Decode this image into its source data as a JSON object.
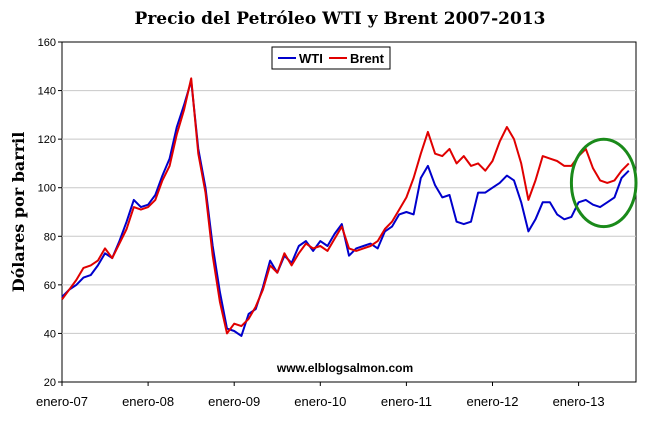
{
  "chart_data": {
    "type": "line",
    "title": "Precio del Petróleo WTI y Brent 2007-2013",
    "xlabel": "",
    "ylabel": "Dólares por barril",
    "ylim": [
      20,
      160
    ],
    "yticks": [
      20,
      40,
      60,
      80,
      100,
      120,
      140,
      160
    ],
    "xlim": [
      "2007-01",
      "2013-09"
    ],
    "xticks": [
      "enero-07",
      "enero-08",
      "enero-09",
      "enero-10",
      "enero-11",
      "enero-12",
      "enero-13"
    ],
    "grid": true,
    "legend": "top-center",
    "annotation": "www.elblogsalmon.com",
    "highlight": {
      "shape": "ellipse",
      "color": "#1a8a1a",
      "x_range": [
        "2012-12",
        "2013-09"
      ],
      "y_range": [
        84,
        120
      ]
    },
    "series": [
      {
        "name": "WTI",
        "color": "#0000cc",
        "x": [
          "2007-01",
          "2007-02",
          "2007-03",
          "2007-04",
          "2007-05",
          "2007-06",
          "2007-07",
          "2007-08",
          "2007-09",
          "2007-10",
          "2007-11",
          "2007-12",
          "2008-01",
          "2008-02",
          "2008-03",
          "2008-04",
          "2008-05",
          "2008-06",
          "2008-07",
          "2008-08",
          "2008-09",
          "2008-10",
          "2008-11",
          "2008-12",
          "2009-01",
          "2009-02",
          "2009-03",
          "2009-04",
          "2009-05",
          "2009-06",
          "2009-07",
          "2009-08",
          "2009-09",
          "2009-10",
          "2009-11",
          "2009-12",
          "2010-01",
          "2010-02",
          "2010-03",
          "2010-04",
          "2010-05",
          "2010-06",
          "2010-07",
          "2010-08",
          "2010-09",
          "2010-10",
          "2010-11",
          "2010-12",
          "2011-01",
          "2011-02",
          "2011-03",
          "2011-04",
          "2011-05",
          "2011-06",
          "2011-07",
          "2011-08",
          "2011-09",
          "2011-10",
          "2011-11",
          "2011-12",
          "2012-01",
          "2012-02",
          "2012-03",
          "2012-04",
          "2012-05",
          "2012-06",
          "2012-07",
          "2012-08",
          "2012-09",
          "2012-10",
          "2012-11",
          "2012-12",
          "2013-01",
          "2013-02",
          "2013-03",
          "2013-04",
          "2013-05",
          "2013-06",
          "2013-07",
          "2013-08"
        ],
        "values": [
          55,
          58,
          60,
          63,
          64,
          68,
          73,
          71,
          78,
          86,
          95,
          92,
          93,
          97,
          105,
          112,
          125,
          134,
          144,
          116,
          100,
          76,
          57,
          42,
          41,
          39,
          48,
          50,
          59,
          70,
          65,
          72,
          69,
          76,
          78,
          74,
          78,
          76,
          81,
          85,
          72,
          75,
          76,
          77,
          75,
          82,
          84,
          89,
          90,
          89,
          104,
          109,
          101,
          96,
          97,
          86,
          85,
          86,
          98,
          98,
          100,
          102,
          105,
          103,
          94,
          82,
          87,
          94,
          94,
          89,
          87,
          88,
          94,
          95,
          93,
          92,
          94,
          96,
          104,
          107
        ]
      },
      {
        "name": "Brent",
        "color": "#e00000",
        "x": [
          "2007-01",
          "2007-02",
          "2007-03",
          "2007-04",
          "2007-05",
          "2007-06",
          "2007-07",
          "2007-08",
          "2007-09",
          "2007-10",
          "2007-11",
          "2007-12",
          "2008-01",
          "2008-02",
          "2008-03",
          "2008-04",
          "2008-05",
          "2008-06",
          "2008-07",
          "2008-08",
          "2008-09",
          "2008-10",
          "2008-11",
          "2008-12",
          "2009-01",
          "2009-02",
          "2009-03",
          "2009-04",
          "2009-05",
          "2009-06",
          "2009-07",
          "2009-08",
          "2009-09",
          "2009-10",
          "2009-11",
          "2009-12",
          "2010-01",
          "2010-02",
          "2010-03",
          "2010-04",
          "2010-05",
          "2010-06",
          "2010-07",
          "2010-08",
          "2010-09",
          "2010-10",
          "2010-11",
          "2010-12",
          "2011-01",
          "2011-02",
          "2011-03",
          "2011-04",
          "2011-05",
          "2011-06",
          "2011-07",
          "2011-08",
          "2011-09",
          "2011-10",
          "2011-11",
          "2011-12",
          "2012-01",
          "2012-02",
          "2012-03",
          "2012-04",
          "2012-05",
          "2012-06",
          "2012-07",
          "2012-08",
          "2012-09",
          "2012-10",
          "2012-11",
          "2012-12",
          "2013-01",
          "2013-02",
          "2013-03",
          "2013-04",
          "2013-05",
          "2013-06",
          "2013-07",
          "2013-08"
        ],
        "values": [
          54,
          58,
          62,
          67,
          68,
          70,
          75,
          71,
          77,
          83,
          92,
          91,
          92,
          95,
          103,
          109,
          122,
          132,
          145,
          114,
          98,
          72,
          53,
          40,
          44,
          43,
          46,
          51,
          58,
          68,
          65,
          73,
          68,
          73,
          77,
          75,
          76,
          74,
          79,
          84,
          75,
          74,
          75,
          76,
          78,
          83,
          86,
          91,
          96,
          104,
          114,
          123,
          114,
          113,
          116,
          110,
          113,
          109,
          110,
          107,
          111,
          119,
          125,
          120,
          110,
          95,
          103,
          113,
          112,
          111,
          109,
          109,
          113,
          116,
          108,
          103,
          102,
          103,
          107,
          110
        ]
      }
    ]
  }
}
